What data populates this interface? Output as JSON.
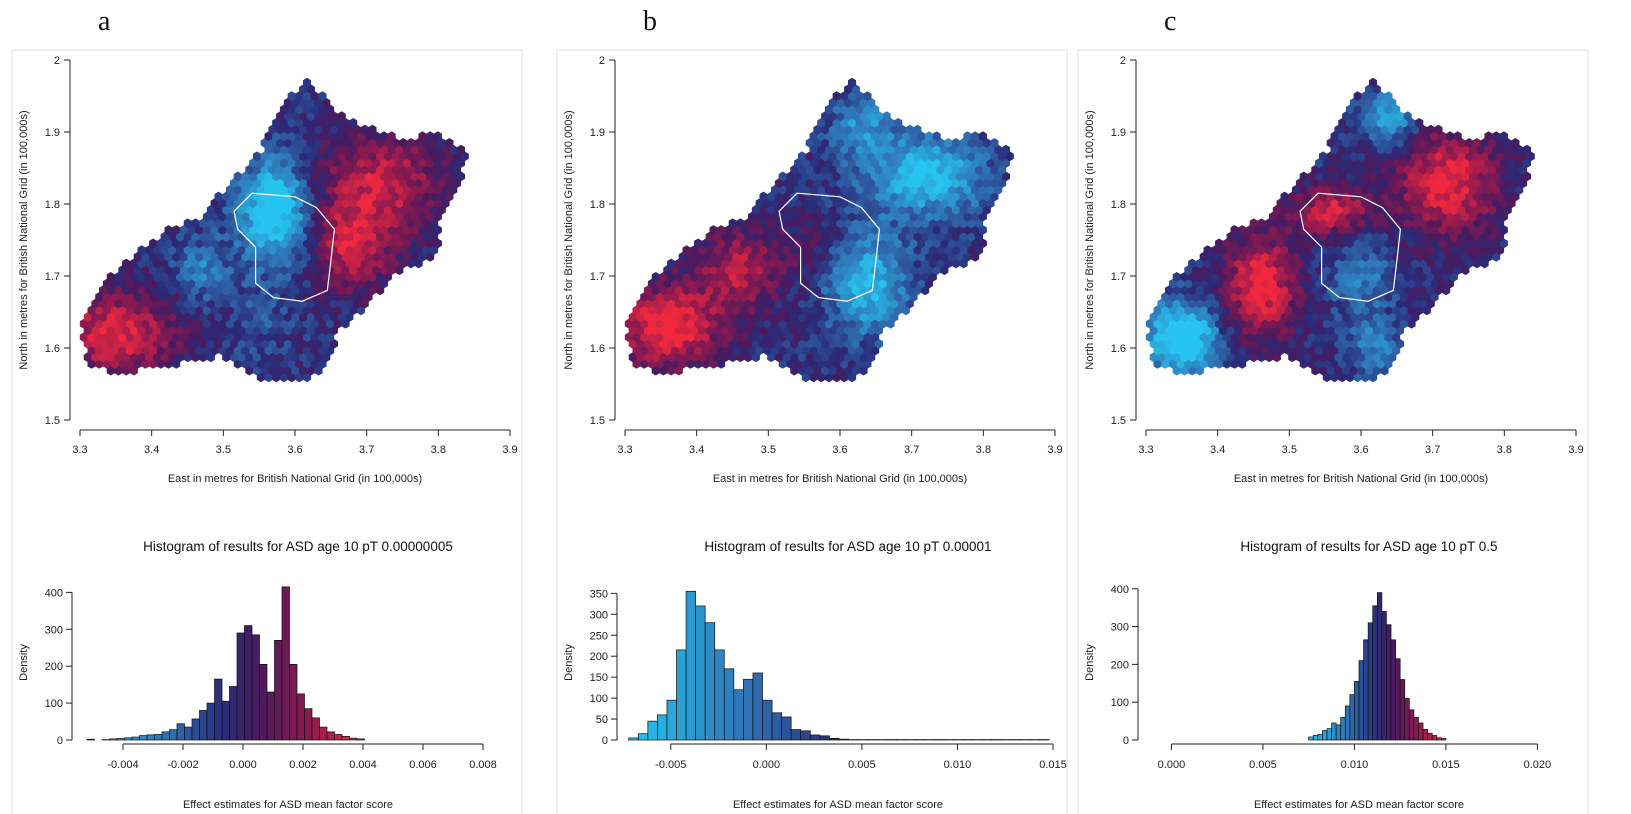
{
  "colors": {
    "cyan": "#27c4f0",
    "steel_blue": "#2f74b5",
    "navy": "#2b2a78",
    "purple": "#4a1a5e",
    "maroon": "#8e1a4f",
    "red": "#f0283e",
    "boundary": "#ffffff"
  },
  "chart_data": [
    {
      "type": "heatmap",
      "panel": "a",
      "map": {
        "xlabel": "East in metres for British National Grid (in 100,000s)",
        "ylabel": "North in metres for British National Grid (in 100,000s)",
        "xlim": [
          3.3,
          3.9
        ],
        "ylim": [
          1.5,
          2.0
        ],
        "x_ticks": [
          "3.3",
          "3.4",
          "3.5",
          "3.6",
          "3.7",
          "3.8",
          "3.9"
        ],
        "y_ticks": [
          "1.5",
          "1.6",
          "1.7",
          "1.8",
          "1.9",
          "2"
        ],
        "blobs": [
          {
            "x": 3.57,
            "y": 1.79,
            "sx": 0.035,
            "sy": 0.05,
            "w": -2.0
          },
          {
            "x": 3.47,
            "y": 1.71,
            "sx": 0.025,
            "sy": 0.03,
            "w": -0.9
          },
          {
            "x": 3.35,
            "y": 1.62,
            "sx": 0.06,
            "sy": 0.04,
            "w": 1.5
          },
          {
            "x": 3.72,
            "y": 1.83,
            "sx": 0.06,
            "sy": 0.05,
            "w": 1.3
          },
          {
            "x": 3.68,
            "y": 1.74,
            "sx": 0.04,
            "sy": 0.04,
            "w": 1.3
          },
          {
            "x": 3.55,
            "y": 1.64,
            "sx": 0.04,
            "sy": 0.04,
            "w": -0.3
          }
        ]
      },
      "histogram": {
        "title": "Histogram of results for ASD age 10 pT 0.00000005",
        "xlabel": "Effect estimates for ASD mean factor score",
        "ylabel": "Density",
        "xlim": [
          -0.0055,
          0.0085
        ],
        "ylim": [
          0,
          420
        ],
        "x_ticks": [
          -0.004,
          -0.002,
          0.0,
          0.002,
          0.004,
          0.006,
          0.008
        ],
        "x_tick_labels": [
          "-0.004",
          "-0.002",
          "0.000",
          "0.002",
          "0.004",
          "0.006",
          "0.008"
        ],
        "y_ticks": [
          0,
          100,
          200,
          300,
          400
        ],
        "y_tick_labels": [
          "0",
          "100",
          "200",
          "300",
          "400"
        ],
        "bin_start": -0.0052,
        "bin_width": 0.00025,
        "densities": [
          2,
          0,
          1,
          3,
          4,
          6,
          8,
          12,
          14,
          15,
          22,
          28,
          44,
          35,
          57,
          80,
          100,
          165,
          105,
          145,
          290,
          310,
          285,
          205,
          130,
          270,
          415,
          205,
          125,
          85,
          60,
          35,
          22,
          15,
          10,
          5,
          3
        ]
      }
    },
    {
      "type": "heatmap",
      "panel": "b",
      "map": {
        "xlabel": "East in metres for British National Grid (in 100,000s)",
        "ylabel": "North in metres for British National Grid (in 100,000s)",
        "xlim": [
          3.3,
          3.9
        ],
        "ylim": [
          1.5,
          2.0
        ],
        "x_ticks": [
          "3.3",
          "3.4",
          "3.5",
          "3.6",
          "3.7",
          "3.8",
          "3.9"
        ],
        "y_ticks": [
          "1.5",
          "1.6",
          "1.7",
          "1.8",
          "1.9",
          "2"
        ],
        "blobs": [
          {
            "x": 3.36,
            "y": 1.63,
            "sx": 0.05,
            "sy": 0.04,
            "w": 1.8
          },
          {
            "x": 3.46,
            "y": 1.71,
            "sx": 0.04,
            "sy": 0.04,
            "w": 1.2
          },
          {
            "x": 3.72,
            "y": 1.84,
            "sx": 0.06,
            "sy": 0.04,
            "w": -1.6
          },
          {
            "x": 3.64,
            "y": 1.69,
            "sx": 0.04,
            "sy": 0.05,
            "w": -1.5
          },
          {
            "x": 3.63,
            "y": 1.91,
            "sx": 0.03,
            "sy": 0.03,
            "w": -1.0
          },
          {
            "x": 3.56,
            "y": 1.74,
            "sx": 0.03,
            "sy": 0.03,
            "w": 0.4
          }
        ]
      },
      "histogram": {
        "title": "Histogram of results for ASD age 10 pT 0.00001",
        "xlabel": "Effect estimates for ASD mean factor score",
        "ylabel": "Density",
        "xlim": [
          -0.0075,
          0.015
        ],
        "ylim": [
          0,
          370
        ],
        "x_ticks": [
          -0.005,
          0.0,
          0.005,
          0.01,
          0.015
        ],
        "x_tick_labels": [
          "-0.005",
          "0.000",
          "0.005",
          "0.010",
          "0.015"
        ],
        "y_ticks": [
          0,
          50,
          100,
          150,
          200,
          250,
          300,
          350
        ],
        "y_tick_labels": [
          "0",
          "50",
          "100",
          "150",
          "200",
          "250",
          "300",
          "350"
        ],
        "bin_start": -0.0072,
        "bin_width": 0.0005,
        "densities": [
          5,
          15,
          45,
          60,
          95,
          215,
          355,
          320,
          280,
          215,
          170,
          120,
          145,
          160,
          95,
          65,
          55,
          25,
          22,
          12,
          10,
          4,
          2,
          1,
          1,
          1,
          1,
          1,
          1,
          1,
          1,
          1,
          1,
          1,
          1,
          1,
          1,
          1,
          1,
          1,
          1,
          1,
          1,
          1
        ]
      }
    },
    {
      "type": "heatmap",
      "panel": "c",
      "map": {
        "xlabel": "East in metres for British National Grid (in 100,000s)",
        "ylabel": "North in metres for British National Grid (in 100,000s)",
        "xlim": [
          3.3,
          3.9
        ],
        "ylim": [
          1.5,
          2.0
        ],
        "x_ticks": [
          "3.3",
          "3.4",
          "3.5",
          "3.6",
          "3.7",
          "3.8",
          "3.9"
        ],
        "y_ticks": [
          "1.5",
          "1.6",
          "1.7",
          "1.8",
          "1.9",
          "2"
        ],
        "blobs": [
          {
            "x": 3.35,
            "y": 1.615,
            "sx": 0.035,
            "sy": 0.035,
            "w": -2.2
          },
          {
            "x": 3.46,
            "y": 1.685,
            "sx": 0.035,
            "sy": 0.05,
            "w": 1.7
          },
          {
            "x": 3.72,
            "y": 1.83,
            "sx": 0.05,
            "sy": 0.05,
            "w": 1.6
          },
          {
            "x": 3.56,
            "y": 1.79,
            "sx": 0.04,
            "sy": 0.025,
            "w": 1.4
          },
          {
            "x": 3.64,
            "y": 1.92,
            "sx": 0.025,
            "sy": 0.025,
            "w": -1.4
          },
          {
            "x": 3.6,
            "y": 1.7,
            "sx": 0.03,
            "sy": 0.04,
            "w": -0.8
          },
          {
            "x": 3.62,
            "y": 1.6,
            "sx": 0.025,
            "sy": 0.03,
            "w": -0.9
          }
        ]
      },
      "histogram": {
        "title": "Histogram of results for ASD age 10 pT 0.5",
        "xlabel": "Effect estimates for ASD mean factor score",
        "ylabel": "Density",
        "xlim": [
          -0.0015,
          0.022
        ],
        "ylim": [
          0,
          410
        ],
        "x_ticks": [
          0.0,
          0.005,
          0.01,
          0.015,
          0.02
        ],
        "x_tick_labels": [
          "0.000",
          "0.005",
          "0.010",
          "0.015",
          "0.020"
        ],
        "y_ticks": [
          0,
          100,
          200,
          300,
          400
        ],
        "y_tick_labels": [
          "0",
          "100",
          "200",
          "300",
          "400"
        ],
        "bin_start": 0.0075,
        "bin_width": 0.00025,
        "densities": [
          8,
          12,
          15,
          25,
          30,
          45,
          40,
          60,
          90,
          120,
          155,
          210,
          265,
          310,
          355,
          390,
          340,
          305,
          265,
          215,
          160,
          110,
          80,
          60,
          45,
          28,
          18,
          12,
          6,
          4
        ]
      }
    }
  ]
}
